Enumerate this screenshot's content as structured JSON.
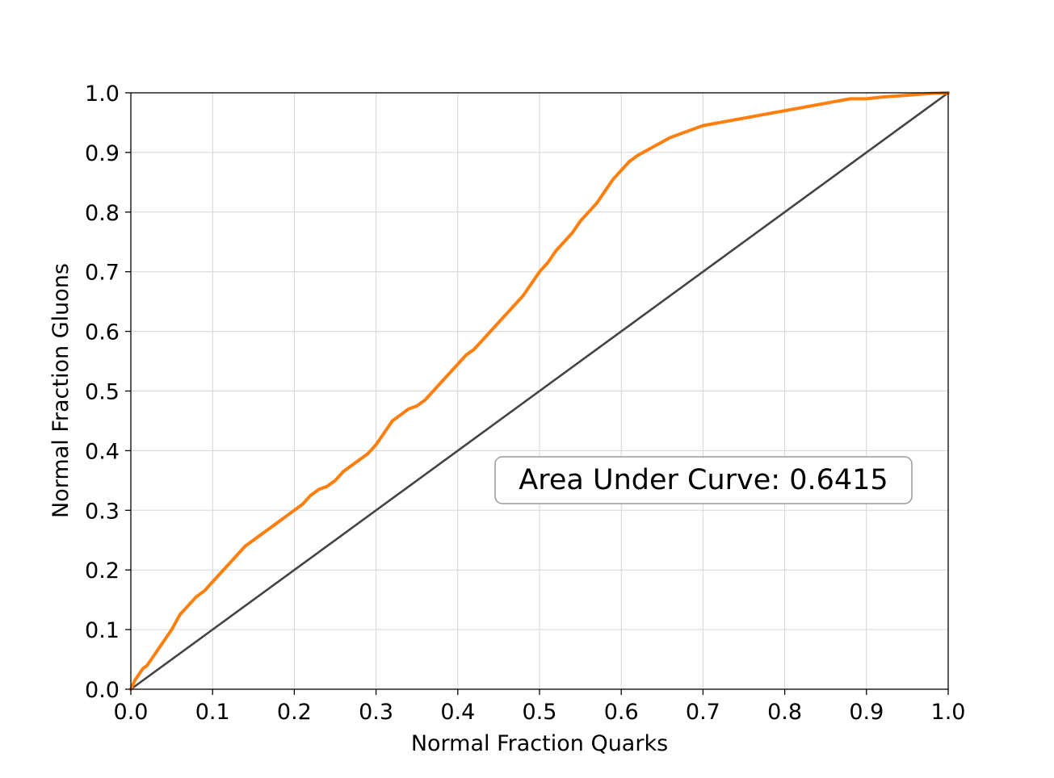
{
  "chart_data": {
    "type": "line",
    "title": "",
    "xlabel": "Normal Fraction Quarks",
    "ylabel": "Normal Fraction Gluons",
    "xlim": [
      0.0,
      1.0
    ],
    "ylim": [
      0.0,
      1.0
    ],
    "xticks": [
      "0.0",
      "0.1",
      "0.2",
      "0.3",
      "0.4",
      "0.5",
      "0.6",
      "0.7",
      "0.8",
      "0.9",
      "1.0"
    ],
    "yticks": [
      "0.0",
      "0.1",
      "0.2",
      "0.3",
      "0.4",
      "0.5",
      "0.6",
      "0.7",
      "0.8",
      "0.9",
      "1.0"
    ],
    "grid": true,
    "legend": "none",
    "annotation": "Area Under Curve: 0.6415",
    "series": [
      {
        "color": "#ff7f0e",
        "x": [
          0.0,
          0.005,
          0.01,
          0.015,
          0.02,
          0.03,
          0.04,
          0.05,
          0.06,
          0.07,
          0.08,
          0.09,
          0.1,
          0.11,
          0.12,
          0.13,
          0.14,
          0.15,
          0.16,
          0.17,
          0.18,
          0.19,
          0.2,
          0.21,
          0.22,
          0.23,
          0.24,
          0.25,
          0.26,
          0.27,
          0.28,
          0.29,
          0.3,
          0.31,
          0.32,
          0.33,
          0.34,
          0.35,
          0.36,
          0.37,
          0.38,
          0.39,
          0.4,
          0.41,
          0.42,
          0.43,
          0.44,
          0.45,
          0.46,
          0.47,
          0.48,
          0.49,
          0.5,
          0.51,
          0.52,
          0.53,
          0.54,
          0.55,
          0.56,
          0.57,
          0.58,
          0.59,
          0.6,
          0.61,
          0.62,
          0.64,
          0.66,
          0.68,
          0.7,
          0.72,
          0.74,
          0.76,
          0.78,
          0.8,
          0.82,
          0.84,
          0.86,
          0.88,
          0.9,
          0.92,
          0.94,
          0.96,
          0.98,
          1.0
        ],
        "y": [
          0.0,
          0.015,
          0.025,
          0.035,
          0.04,
          0.06,
          0.08,
          0.1,
          0.125,
          0.14,
          0.155,
          0.165,
          0.18,
          0.195,
          0.21,
          0.225,
          0.24,
          0.25,
          0.26,
          0.27,
          0.28,
          0.29,
          0.3,
          0.31,
          0.325,
          0.335,
          0.34,
          0.35,
          0.365,
          0.375,
          0.385,
          0.395,
          0.41,
          0.43,
          0.45,
          0.46,
          0.47,
          0.475,
          0.485,
          0.5,
          0.515,
          0.53,
          0.545,
          0.56,
          0.57,
          0.585,
          0.6,
          0.615,
          0.63,
          0.645,
          0.66,
          0.68,
          0.7,
          0.715,
          0.735,
          0.75,
          0.765,
          0.785,
          0.8,
          0.815,
          0.835,
          0.855,
          0.87,
          0.885,
          0.895,
          0.91,
          0.925,
          0.935,
          0.945,
          0.95,
          0.955,
          0.96,
          0.965,
          0.97,
          0.975,
          0.98,
          0.985,
          0.99,
          0.99,
          0.993,
          0.995,
          0.997,
          0.999,
          1.0
        ]
      },
      {
        "color": "#444444",
        "x": [
          0.0,
          1.0
        ],
        "y": [
          0.0,
          1.0
        ]
      }
    ]
  }
}
